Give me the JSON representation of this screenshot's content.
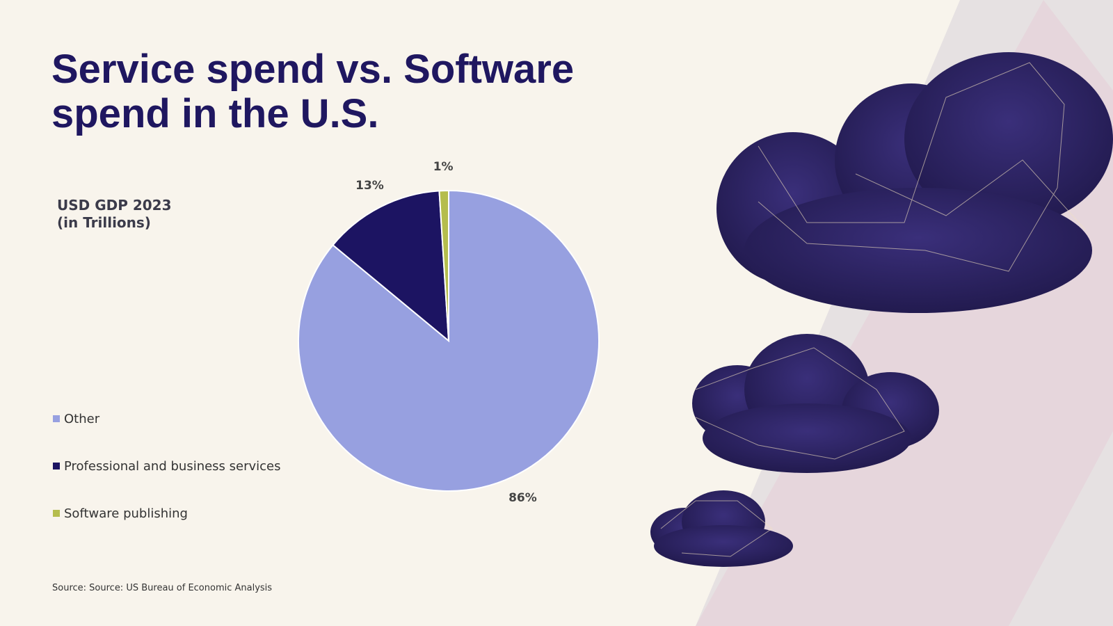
{
  "chart_data": {
    "type": "pie",
    "title": "Service spend vs. Software spend in the U.S.",
    "subtitle": "USD GDP 2023 (in Trillions)",
    "categories": [
      "Other",
      "Professional and business services",
      "Software publishing"
    ],
    "values": [
      86,
      13,
      1
    ],
    "value_labels": [
      "86%",
      "13%",
      "1%"
    ],
    "colors": [
      "#97a0e0",
      "#1c1462",
      "#b5bd4d"
    ],
    "legend": "left",
    "source": "Source: Source: US Bureau of Economic Analysis"
  }
}
